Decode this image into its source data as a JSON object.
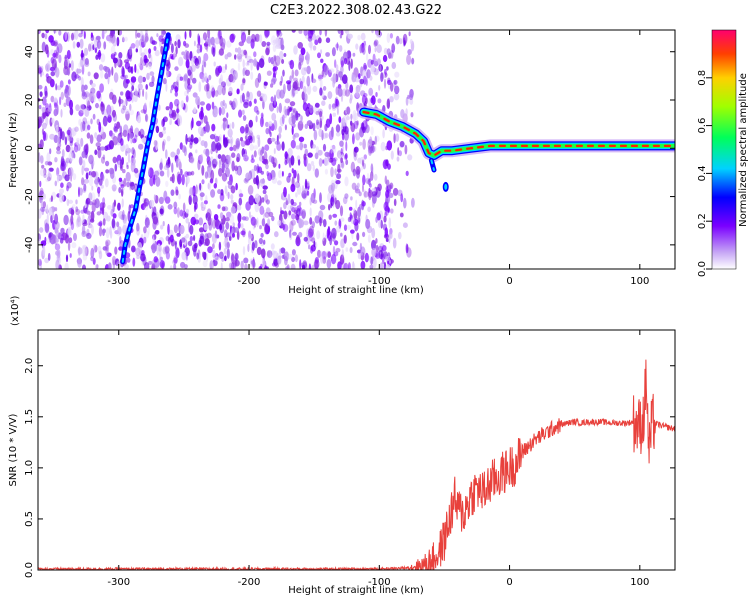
{
  "title": "C2E3.2022.308.02.43.G22",
  "chart_data": [
    {
      "type": "heatmap",
      "xlabel": "Height of straight line (km)",
      "ylabel": "Frequency (Hz)",
      "xlim": [
        -362,
        127
      ],
      "ylim": [
        -50,
        49
      ],
      "xticks": [
        -300,
        -200,
        -100,
        0,
        100
      ],
      "yticks": [
        -40,
        -20,
        0,
        20,
        40
      ],
      "grid": false,
      "colorbar": {
        "label": "Normalized spectral amplitude",
        "ticks": [
          "0.0",
          "0.2",
          "0.4",
          "0.6",
          "0.8"
        ],
        "range": [
          0,
          1
        ]
      },
      "features": [
        {
          "name": "occultation trace",
          "points": [
            [
              -297,
              -47
            ],
            [
              -295,
              -40
            ],
            [
              -291,
              -32
            ],
            [
              -287,
              -25
            ],
            [
              -284,
              -16
            ],
            [
              -281,
              -8
            ],
            [
              -278,
              1
            ],
            [
              -274,
              10
            ],
            [
              -271,
              20
            ],
            [
              -268,
              29
            ],
            [
              -265,
              38
            ],
            [
              -262,
              47
            ]
          ],
          "amplitude": 0.3
        },
        {
          "name": "main tone",
          "points": [
            [
              -112,
              15
            ],
            [
              -102,
              14
            ],
            [
              -92,
              11
            ],
            [
              -82,
              9
            ],
            [
              -72,
              6
            ],
            [
              -66,
              3
            ],
            [
              -62,
              -2
            ],
            [
              -58,
              -3
            ],
            [
              -52,
              -1
            ],
            [
              -44,
              -1
            ],
            [
              -30,
              0
            ],
            [
              -15,
              1
            ],
            [
              0,
              1
            ],
            [
              30,
              1
            ],
            [
              60,
              1
            ],
            [
              90,
              1
            ],
            [
              127,
              1
            ]
          ],
          "amplitude": 0.85
        },
        {
          "name": "side lobe",
          "points": [
            [
              -60,
              -5
            ],
            [
              -58,
              -9
            ]
          ],
          "amplitude": 0.3
        },
        {
          "name": "isolated blob",
          "points": [
            [
              -49,
              -16
            ]
          ],
          "amplitude": 0.3
        }
      ]
    },
    {
      "type": "line",
      "xlabel": "Height of straight line (km)",
      "ylabel": "SNR (10 * V/V)",
      "y_multiplier": "(x10⁴)",
      "xlim": [
        -362,
        127
      ],
      "ylim": [
        0,
        2.35
      ],
      "xticks": [
        -300,
        -200,
        -100,
        0,
        100
      ],
      "yticks": [
        "0.0",
        "0.5",
        "1.0",
        "1.5",
        "2.0"
      ],
      "grid": false,
      "color": "#e8413c",
      "series": [
        {
          "x": [
            -362,
            -300,
            -200,
            -100,
            -80,
            -65,
            -55,
            -50,
            -45,
            -42,
            -40,
            -35,
            -30,
            -25,
            -20,
            -15,
            -10,
            -5,
            0,
            5,
            10,
            15,
            20,
            25,
            30,
            35,
            40,
            45,
            50,
            55,
            60,
            70,
            80,
            90,
            95,
            100,
            103,
            105,
            107,
            108,
            110,
            115,
            120,
            127
          ],
          "y": [
            0.01,
            0.01,
            0.01,
            0.01,
            0.02,
            0.05,
            0.15,
            0.3,
            0.55,
            0.7,
            0.6,
            0.55,
            0.72,
            0.8,
            0.75,
            0.85,
            0.9,
            0.95,
            1.0,
            1.05,
            1.15,
            1.22,
            1.28,
            1.32,
            1.36,
            1.4,
            1.42,
            1.44,
            1.45,
            1.44,
            1.45,
            1.45,
            1.44,
            1.44,
            1.45,
            1.4,
            1.5,
            1.9,
            1.1,
            1.3,
            1.45,
            1.42,
            1.4,
            1.38
          ]
        }
      ]
    }
  ]
}
